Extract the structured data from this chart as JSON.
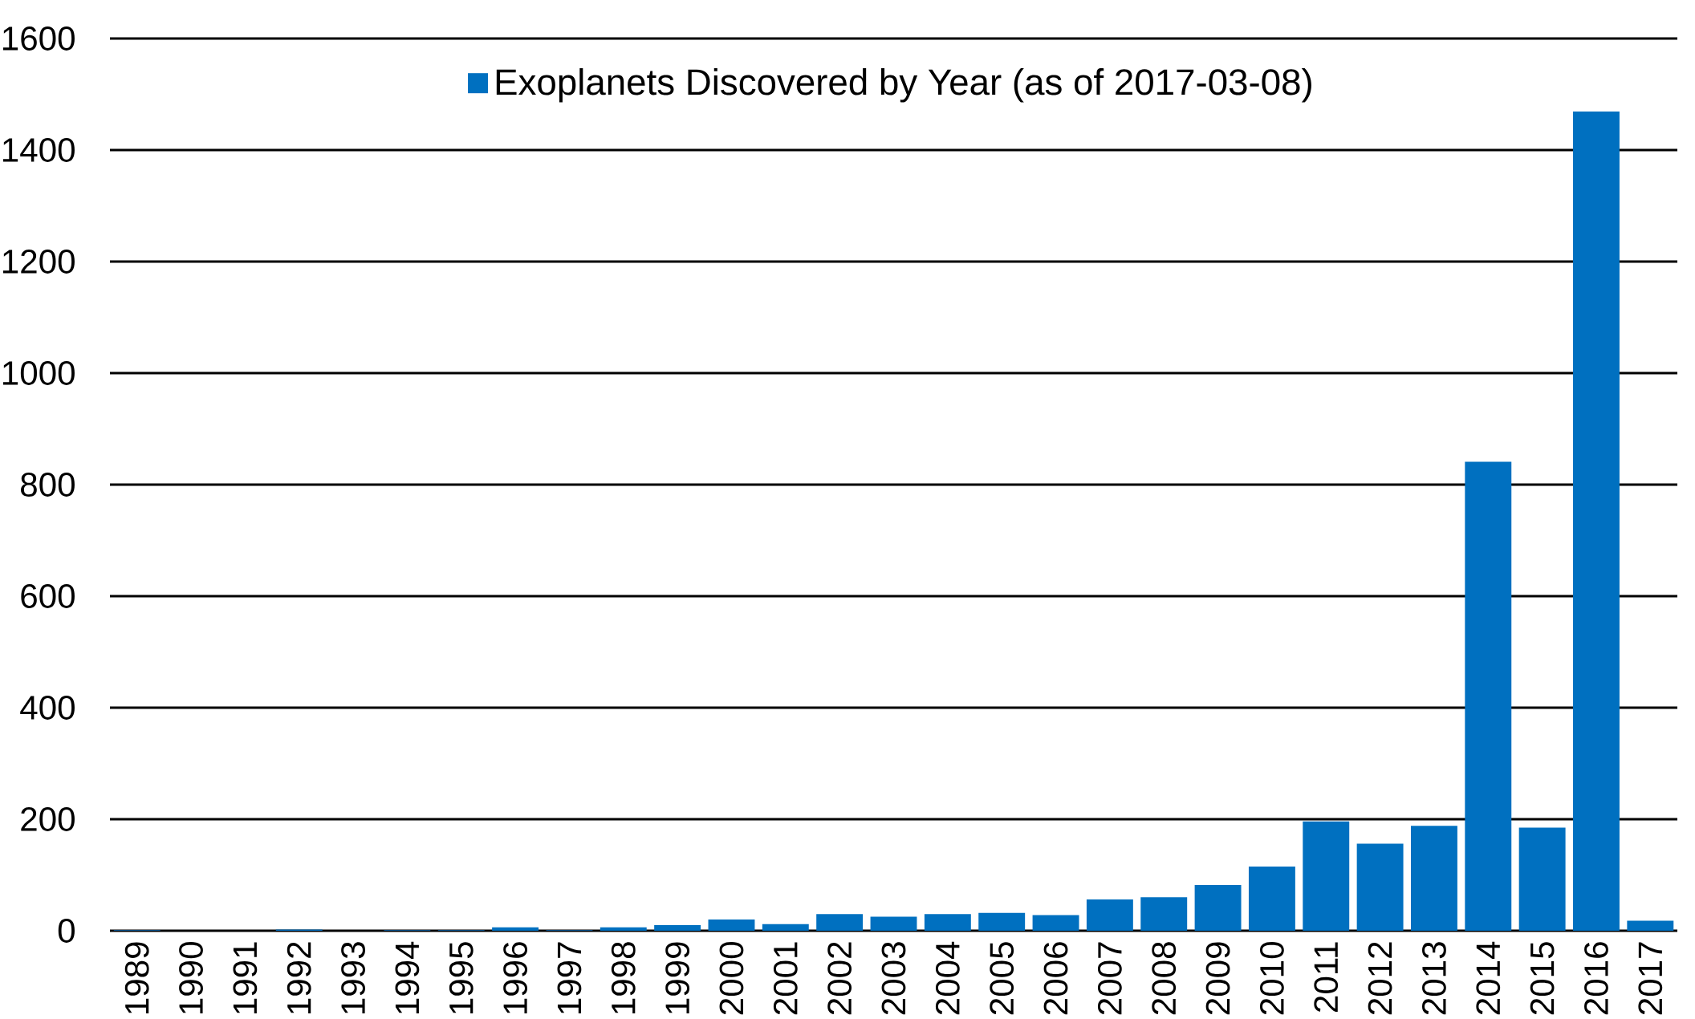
{
  "chart_data": {
    "type": "bar",
    "categories": [
      "1989",
      "1990",
      "1991",
      "1992",
      "1993",
      "1994",
      "1995",
      "1996",
      "1997",
      "1998",
      "1999",
      "2000",
      "2001",
      "2002",
      "2003",
      "2004",
      "2005",
      "2006",
      "2007",
      "2008",
      "2009",
      "2010",
      "2011",
      "2012",
      "2013",
      "2014",
      "2015",
      "2016",
      "2017"
    ],
    "series": [
      {
        "name": "Exoplanets Discovered by Year (as of 2017-03-08)",
        "color": "#0070c0",
        "values": [
          1,
          0,
          0,
          2,
          0,
          1,
          1,
          6,
          1,
          6,
          10,
          20,
          12,
          30,
          25,
          30,
          32,
          28,
          56,
          60,
          82,
          115,
          196,
          156,
          188,
          841,
          185,
          1469,
          18
        ]
      }
    ],
    "ylim": [
      0,
      1600
    ],
    "yticks": [
      0,
      200,
      400,
      600,
      800,
      1000,
      1200,
      1400,
      1600
    ],
    "grid": "y",
    "legend": "top"
  }
}
